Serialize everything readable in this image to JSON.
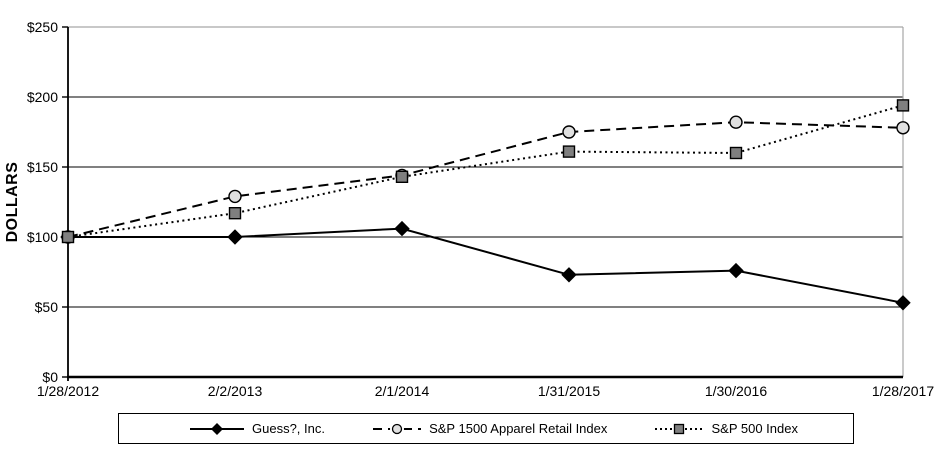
{
  "chart_data": {
    "type": "line",
    "title": "",
    "ylabel": "DOLLARS",
    "xlabel": "",
    "categories": [
      "1/28/2012",
      "2/2/2013",
      "2/1/2014",
      "1/31/2015",
      "1/30/2016",
      "1/28/2017"
    ],
    "y_tick_labels": [
      "$0",
      "$50",
      "$100",
      "$150",
      "$200",
      "$250"
    ],
    "ylim": [
      0,
      250
    ],
    "y_tick_step": 50,
    "grid": "horizontal",
    "legend_position": "bottom-boxed",
    "series": [
      {
        "name": "Guess?, Inc.",
        "line_style": "solid",
        "marker": "diamond",
        "color": "#000000",
        "marker_fill": "#000000",
        "values": [
          100,
          100,
          106,
          73,
          76,
          53
        ]
      },
      {
        "name": "S&P 1500 Apparel Retail Index",
        "line_style": "dashed",
        "marker": "circle",
        "color": "#000000",
        "marker_fill": "#e0e0e0",
        "values": [
          100,
          129,
          144,
          175,
          182,
          178
        ]
      },
      {
        "name": "S&P 500 Index",
        "line_style": "dotted",
        "marker": "square",
        "color": "#000000",
        "marker_fill": "#7f7f7f",
        "values": [
          100,
          117,
          143,
          161,
          160,
          194
        ]
      }
    ]
  },
  "colors": {
    "background": "#ffffff",
    "plot_border": "#a6a6a6",
    "axis": "#000000",
    "gridline": "#000000",
    "text": "#000000"
  }
}
